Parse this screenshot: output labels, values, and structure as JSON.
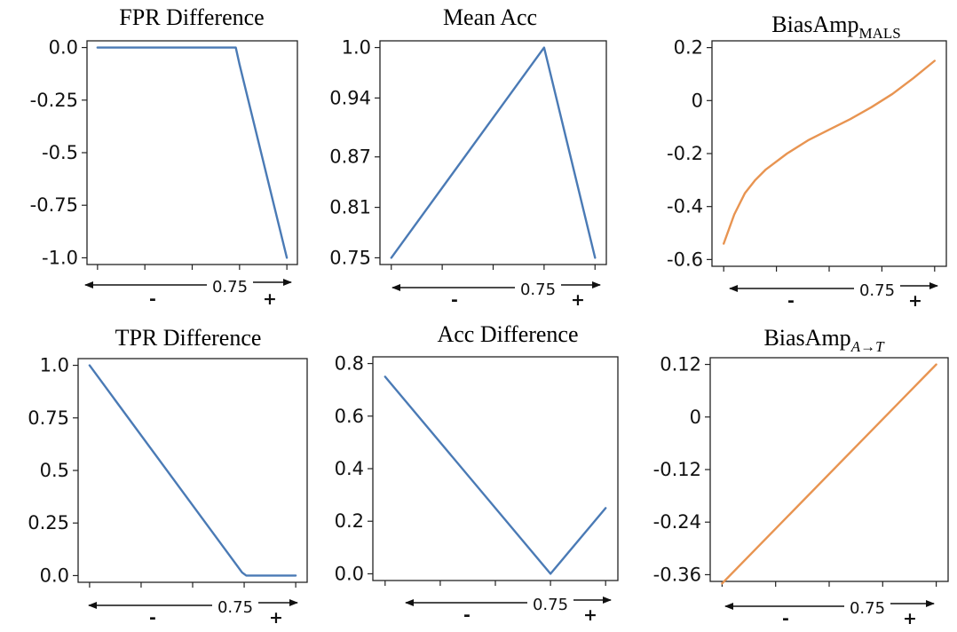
{
  "colors": {
    "blue": "#4a7ab5",
    "orange": "#e89451",
    "axis": "#222222"
  },
  "annotation": {
    "center_label": "0.75",
    "minus": "-",
    "plus": "+"
  },
  "chart_data": [
    {
      "type": "line",
      "title": "FPR Difference",
      "color": "blue",
      "x": [
        0,
        0.73,
        0.75,
        1.0
      ],
      "y": [
        0.0,
        0.0,
        -0.08,
        -1.0
      ],
      "xlim": [
        0,
        1
      ],
      "ylim": [
        -1.0,
        0.0
      ],
      "yticks": [
        0.0,
        -0.25,
        -0.5,
        -0.75,
        -1.0
      ],
      "ytick_labels": [
        "0.0",
        "-0.25",
        "-0.5",
        "-0.75",
        "-1.0"
      ]
    },
    {
      "type": "line",
      "title": "Mean Acc",
      "color": "blue",
      "x": [
        0,
        0.75,
        0.77,
        1.0
      ],
      "y": [
        0.75,
        1.0,
        0.98,
        0.75
      ],
      "xlim": [
        0,
        1
      ],
      "ylim": [
        0.75,
        1.0
      ],
      "yticks": [
        1.0,
        0.94,
        0.87,
        0.81,
        0.75
      ],
      "ytick_labels": [
        "1.0",
        "0.94",
        "0.87",
        "0.81",
        "0.75"
      ]
    },
    {
      "type": "line",
      "title": "BiasAmp",
      "title_sub": "MALS",
      "title_sub_italic": false,
      "color": "orange",
      "x": [
        0,
        0.05,
        0.1,
        0.15,
        0.2,
        0.3,
        0.4,
        0.5,
        0.6,
        0.7,
        0.8,
        0.9,
        1.0
      ],
      "y": [
        -0.54,
        -0.43,
        -0.35,
        -0.3,
        -0.26,
        -0.2,
        -0.15,
        -0.11,
        -0.07,
        -0.025,
        0.025,
        0.085,
        0.15
      ],
      "xlim": [
        0,
        1
      ],
      "ylim": [
        -0.6,
        0.2
      ],
      "yticks": [
        0.2,
        0,
        -0.2,
        -0.4,
        -0.6
      ],
      "ytick_labels": [
        "0.2",
        "0",
        "-0.2",
        "-0.4",
        "-0.6"
      ]
    },
    {
      "type": "line",
      "title": "TPR Difference",
      "color": "blue",
      "x": [
        0,
        0.74,
        0.76,
        1.0
      ],
      "y": [
        1.0,
        0.015,
        0.0,
        0.0
      ],
      "xlim": [
        0,
        1
      ],
      "ylim": [
        0.0,
        1.0
      ],
      "yticks": [
        1.0,
        0.75,
        0.5,
        0.25,
        0.0
      ],
      "ytick_labels": [
        "1.0",
        "0.75",
        "0.5",
        "0.25",
        "0.0"
      ]
    },
    {
      "type": "line",
      "title": "Acc Difference",
      "color": "blue",
      "x": [
        0,
        0.75,
        1.0
      ],
      "y": [
        0.75,
        0.0,
        0.25
      ],
      "xlim": [
        0,
        1
      ],
      "ylim": [
        0.0,
        0.8
      ],
      "yticks": [
        0.8,
        0.6,
        0.4,
        0.2,
        0.0
      ],
      "ytick_labels": [
        "0.8",
        "0.6",
        "0.4",
        "0.2",
        "0.0"
      ]
    },
    {
      "type": "line",
      "title": "BiasAmp",
      "title_sub": "A→T",
      "title_sub_italic": true,
      "color": "orange",
      "x": [
        0,
        1.0
      ],
      "y": [
        -0.38,
        0.12
      ],
      "xlim": [
        0,
        1
      ],
      "ylim": [
        -0.36,
        0.12
      ],
      "yticks": [
        0.12,
        0,
        -0.12,
        -0.24,
        -0.36
      ],
      "ytick_labels": [
        "0.12",
        "0",
        "-0.12",
        "-0.24",
        "-0.36"
      ]
    }
  ]
}
